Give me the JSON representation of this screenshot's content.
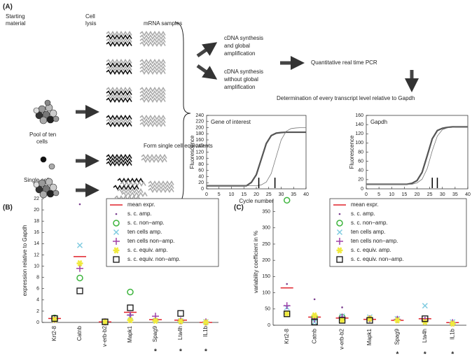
{
  "panel_a": {
    "label": "(A)",
    "starting_material": [
      "Starting",
      "material"
    ],
    "cell_lysis": [
      "Cell",
      "lysis"
    ],
    "mrna_samples": "mRNA samples",
    "pool_top": [
      "Pool of ten",
      "cells"
    ],
    "form_equivalents": "Form single cell equivalents",
    "single_cell": "Single cell",
    "amp": [
      "cDNA synthesis",
      "and  global",
      "amplification"
    ],
    "non_amp": [
      "cDNA synthesis",
      "without global",
      "amplification"
    ],
    "qpcr": "Quantitative real time PCR",
    "determination": "Determination of every transcript level relative to Gapdh"
  },
  "panel_b_label": "(B)",
  "panel_c_label": "(C)",
  "chart_data": [
    {
      "type": "line",
      "title": "Gene of interest",
      "xlabel": "Cycle number",
      "ylabel": "Fluorescence",
      "x": [
        0,
        2,
        4,
        6,
        8,
        10,
        12,
        14,
        16,
        18,
        20,
        22,
        24,
        26,
        28,
        30,
        32,
        34,
        36,
        38,
        40
      ],
      "series": [
        {
          "color": "#555555",
          "width": 2.2,
          "values": [
            10,
            10,
            10,
            10,
            10,
            10,
            10,
            10,
            10,
            21,
            46,
            97,
            148,
            174,
            182,
            184,
            185,
            185,
            185,
            185,
            185
          ]
        },
        {
          "color": "#777777",
          "width": 0.8,
          "values": [
            10,
            10,
            10,
            10,
            10,
            10,
            10,
            10,
            10,
            10,
            10,
            13,
            22,
            50,
            105,
            160,
            188,
            197,
            199,
            200,
            200
          ]
        }
      ],
      "ct_markers": [
        21,
        27.5
      ],
      "xlim": [
        0,
        40
      ],
      "xticks": [
        0,
        5,
        10,
        15,
        20,
        25,
        30,
        35,
        40
      ],
      "ylim": [
        0,
        240
      ],
      "yticks": [
        0,
        20,
        40,
        60,
        80,
        100,
        120,
        140,
        160,
        180,
        200,
        220,
        240
      ]
    },
    {
      "type": "line",
      "title": "Gapdh",
      "xlabel": "Cycle number",
      "ylabel": "Fluorescence",
      "x": [
        0,
        2,
        4,
        6,
        8,
        10,
        12,
        14,
        16,
        18,
        20,
        22,
        24,
        26,
        28,
        30,
        32,
        34,
        36,
        38,
        40
      ],
      "series": [
        {
          "color": "#555555",
          "width": 2.2,
          "values": [
            10,
            10,
            10,
            10,
            10,
            10,
            10,
            10,
            10,
            12,
            18,
            36,
            72,
            109,
            127,
            132,
            134,
            135,
            135,
            135,
            135
          ]
        },
        {
          "color": "#777777",
          "width": 0.8,
          "values": [
            10,
            10,
            10,
            10,
            10,
            10,
            10,
            10,
            10,
            10,
            13,
            21,
            44,
            83,
            115,
            129,
            133,
            134,
            135,
            135,
            135
          ]
        }
      ],
      "ct_markers": [
        26,
        28
      ],
      "xlim": [
        0,
        40
      ],
      "xticks": [
        0,
        5,
        10,
        15,
        20,
        25,
        30,
        35,
        40
      ],
      "ylim": [
        0,
        160
      ],
      "yticks": [
        0,
        20,
        40,
        60,
        80,
        100,
        120,
        140,
        160
      ]
    },
    {
      "type": "scatter",
      "ylabel": "expression relative to Gapdh",
      "categories": [
        "Krt2-8",
        "Catnb",
        "v-erb-b2",
        "Mapk1",
        "Spag9",
        "Lta4h",
        "IL1b"
      ],
      "significance": [
        null,
        null,
        null,
        null,
        "*",
        "*",
        "*"
      ],
      "legend": "upper right",
      "series": [
        {
          "name": "mean expr.",
          "color": "#e0202a",
          "marker": "line",
          "values": [
            0.7,
            11.7,
            0.1,
            1.8,
            0.5,
            0.4,
            0
          ]
        },
        {
          "name": "s. c. amp.",
          "color": "#7a3e8e",
          "marker": "dot",
          "values": [
            0.6,
            21,
            0.1,
            1.5,
            0.5,
            0.3,
            0.1
          ]
        },
        {
          "name": "s. c. non−amp.",
          "color": "#3cb43c",
          "marker": "circle",
          "values": [
            0.8,
            7.9,
            null,
            5.4,
            null,
            null,
            null
          ]
        },
        {
          "name": "ten cells amp.",
          "color": "#7fcbe0",
          "marker": "x",
          "values": [
            0.6,
            13.7,
            0.2,
            1.0,
            0.3,
            0.3,
            0.1
          ]
        },
        {
          "name": "ten cells non−amp.",
          "color": "#a040a8",
          "marker": "plus",
          "values": [
            0.6,
            9.6,
            0.1,
            1.3,
            1.1,
            0.3,
            0.1
          ]
        },
        {
          "name": "s. c. equiv. amp.",
          "color": "#f0ea3c",
          "marker": "star",
          "values": [
            0.5,
            10.5,
            0.1,
            0.4,
            0.3,
            0.2,
            0
          ]
        },
        {
          "name": "s. c. equiv. non−amp.",
          "color": "#111111",
          "marker": "square",
          "values": [
            0.7,
            5.6,
            0.1,
            2.6,
            null,
            1.6,
            null
          ]
        }
      ],
      "ylim": [
        0,
        22
      ],
      "yticks": [
        0,
        2,
        4,
        6,
        8,
        10,
        12,
        14,
        16,
        18,
        20,
        22
      ]
    },
    {
      "type": "scatter",
      "ylabel": "variability coefficient in %",
      "categories": [
        "Krt2-8",
        "Catnb",
        "v-erb-b2",
        "Mapk1",
        "Spag9",
        "Lta4h",
        "IL1b"
      ],
      "significance": [
        null,
        null,
        null,
        null,
        "*",
        "*",
        "*"
      ],
      "legend": "upper right",
      "series": [
        {
          "name": "mean expr.",
          "color": "#e0202a",
          "marker": "line",
          "values": [
            115,
            25,
            22,
            18,
            15,
            20,
            8
          ]
        },
        {
          "name": "s. c. amp.",
          "color": "#7a3e8e",
          "marker": "dot",
          "values": [
            127,
            80,
            55,
            25,
            25,
            20,
            12
          ]
        },
        {
          "name": "s. c. non−amp.",
          "color": "#3cb43c",
          "marker": "circle",
          "values": [
            385,
            25,
            25,
            null,
            null,
            null,
            null
          ]
        },
        {
          "name": "ten cells amp.",
          "color": "#7fcbe0",
          "marker": "x",
          "values": [
            55,
            10,
            28,
            25,
            20,
            60,
            10
          ]
        },
        {
          "name": "ten cells non−amp.",
          "color": "#a040a8",
          "marker": "plus",
          "values": [
            60,
            20,
            25,
            20,
            18,
            15,
            8
          ]
        },
        {
          "name": "s. c. equiv. amp.",
          "color": "#f0ea3c",
          "marker": "star",
          "values": [
            35,
            30,
            15,
            20,
            15,
            10,
            5
          ]
        },
        {
          "name": "s. c. equiv. non−amp.",
          "color": "#111111",
          "marker": "square",
          "values": [
            35,
            10,
            15,
            15,
            null,
            20,
            null
          ]
        }
      ],
      "ylim": [
        0,
        390
      ],
      "yticks": [
        0,
        50,
        100,
        150,
        200,
        250,
        300,
        350
      ]
    }
  ]
}
